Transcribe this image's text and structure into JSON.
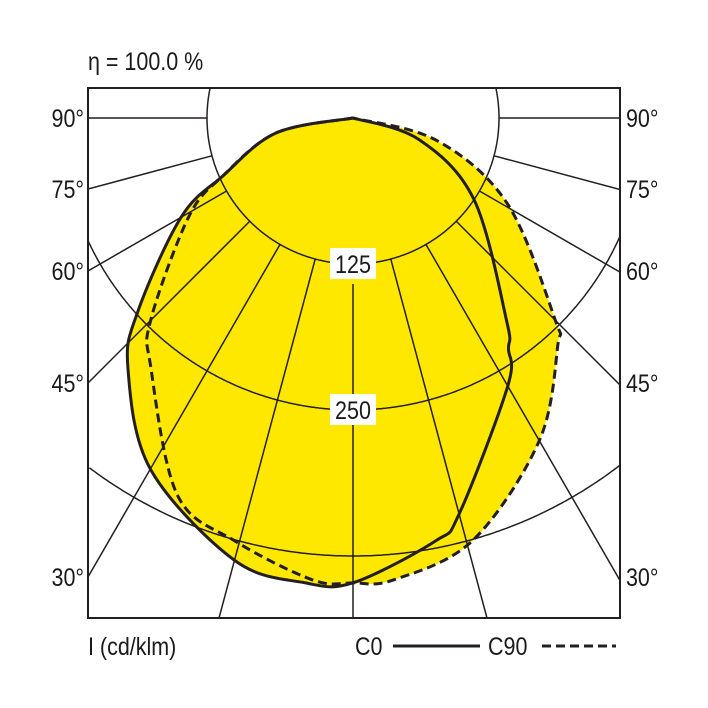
{
  "chart_data": {
    "type": "polar",
    "title": "η = 100.0 %",
    "unit_label": "I (cd/klm)",
    "radial_ticks": [
      125,
      250,
      375
    ],
    "radial_tick_labels": [
      "125",
      "250"
    ],
    "angle_labels": [
      "90°",
      "75°",
      "60°",
      "45°",
      "30°"
    ],
    "angle_label_values": [
      90,
      75,
      60,
      45,
      30
    ],
    "ray_angles": [
      0,
      15,
      30,
      45,
      60,
      75,
      90
    ],
    "fill_color": "#FFE800",
    "line_color": "#231f20",
    "series": [
      {
        "name": "C0",
        "style": "solid",
        "angles": [
          -90,
          -79,
          -66,
          -60,
          -48,
          -42,
          -30,
          -15,
          -6,
          0,
          11,
          15,
          30,
          34,
          37,
          56,
          72,
          90
        ],
        "values": [
          0,
          67,
          122,
          170,
          248,
          288,
          347,
          392,
          400,
          398,
          369,
          351,
          265,
          238,
          219,
          125,
          59,
          0
        ]
      },
      {
        "name": "C90",
        "style": "dashed",
        "angles": [
          -90,
          -79,
          -66,
          -59,
          -45,
          -39,
          -25,
          -15.6,
          -5,
          0,
          5,
          15.8,
          30,
          42,
          45,
          61,
          75,
          90
        ],
        "values": [
          0,
          67,
          122,
          164,
          245,
          275,
          356,
          376,
          397,
          398,
          397,
          376,
          319,
          262,
          245,
          151,
          74,
          0
        ]
      }
    ]
  }
}
